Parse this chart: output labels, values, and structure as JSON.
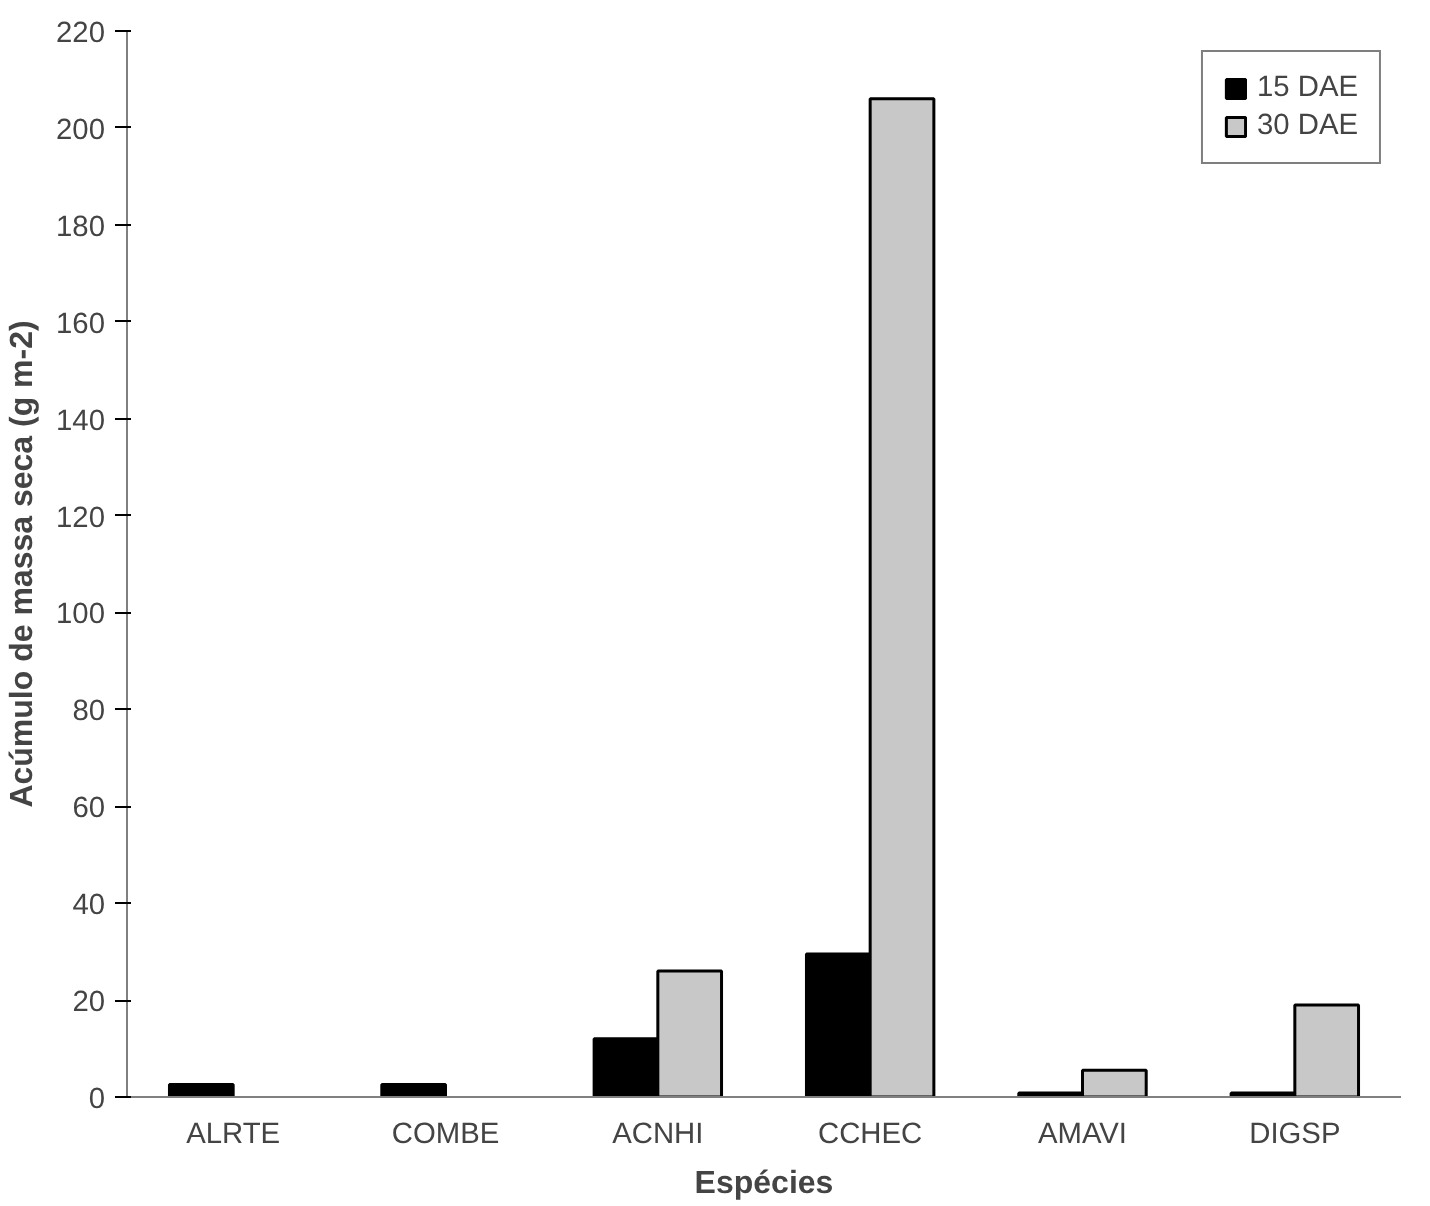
{
  "chart_data": {
    "type": "bar",
    "xlabel": "Espécies",
    "ylabel": "Acúmulo de massa seca (g m-2)",
    "categories": [
      "ALRTE",
      "COMBE",
      "ACNHI",
      "CCHEC",
      "AMAVI",
      "DIGSP"
    ],
    "series": [
      {
        "name": "15 DAE",
        "color": "#000000",
        "values": [
          2.6,
          2.6,
          12,
          29.5,
          0.8,
          0.8
        ]
      },
      {
        "name": "30 DAE",
        "color": "#c8c8c8",
        "values": [
          null,
          null,
          26,
          206,
          5.5,
          19
        ]
      }
    ],
    "ylim": [
      0,
      220
    ],
    "yticks": [
      0,
      20,
      40,
      60,
      80,
      100,
      120,
      140,
      160,
      180,
      200,
      220
    ],
    "grid": false,
    "legend": "top right"
  }
}
